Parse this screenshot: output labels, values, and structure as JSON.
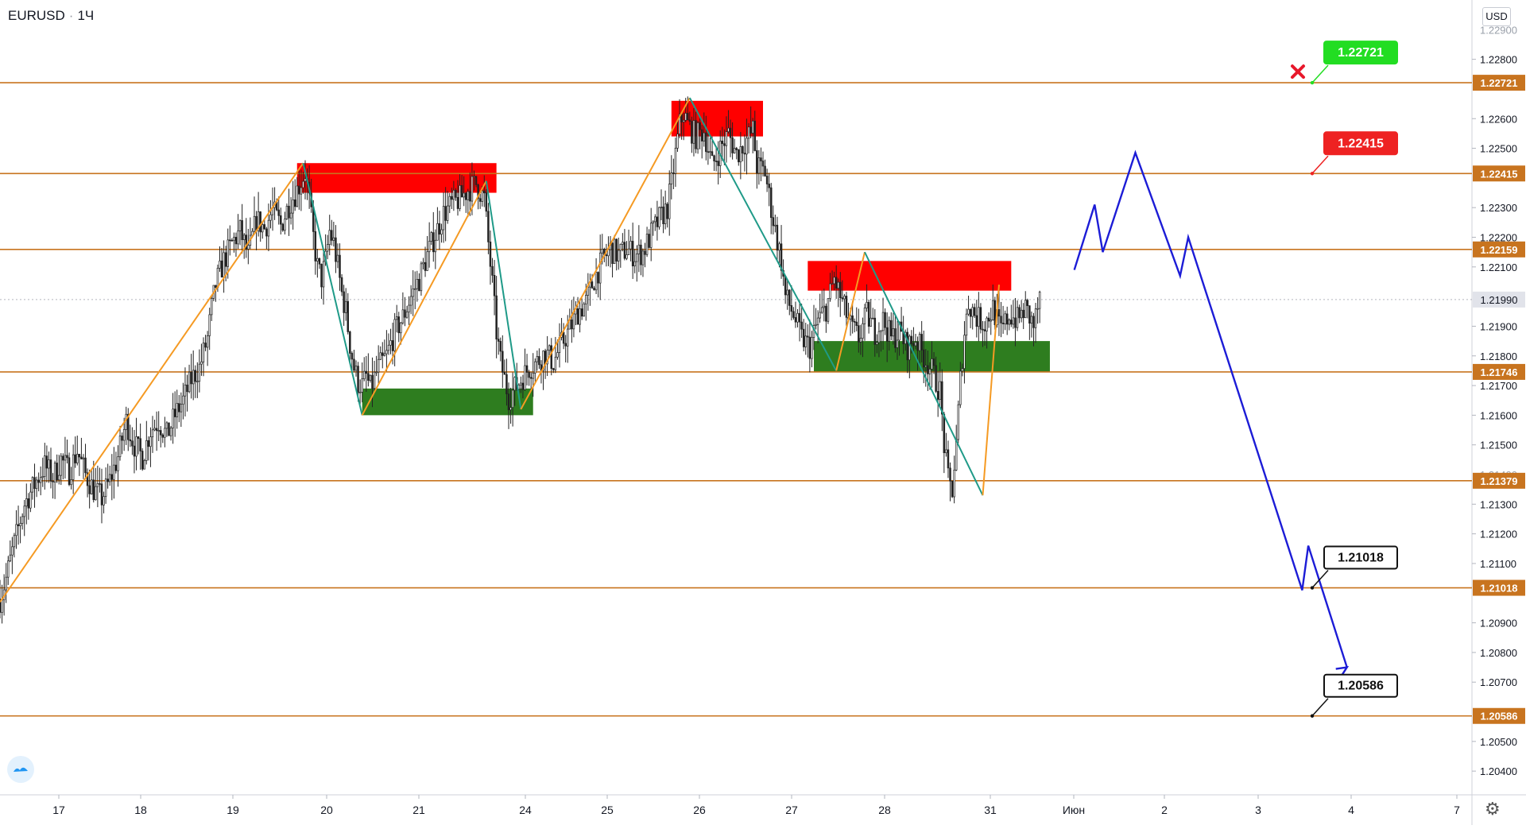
{
  "header": {
    "symbol": "EURUSD",
    "interval": "1Ч",
    "separator": "·",
    "currency": "USD"
  },
  "icons": {
    "logo": "tradingview-logo-icon",
    "settings": "gear-icon",
    "invalidated": "x-mark-icon"
  },
  "colors": {
    "level_line": "#c8741f",
    "up_wave": "#f59a23",
    "down_wave": "#1f9a88",
    "forecast": "#1c1cd6",
    "resistance_zone": "#ff0000",
    "support_zone": "#2e7d1f",
    "candle": "#222222",
    "target_green": "#22dd22",
    "target_red": "#ee2222",
    "target_black": "#111111"
  },
  "chart_data": {
    "type": "candlestick",
    "symbol": "EURUSD",
    "timeframe": "1Ч",
    "y_unit": "USD",
    "ylim": [
      1.2032,
      1.23
    ],
    "x_ticks": [
      "17",
      "18",
      "19",
      "20",
      "21",
      "24",
      "25",
      "26",
      "27",
      "28",
      "31",
      "Июн",
      "2",
      "3",
      "4",
      "7"
    ],
    "y_ticks": [
      "1.22800",
      "1.22600",
      "1.22500",
      "1.22300",
      "1.22200",
      "1.22100",
      "1.21900",
      "1.21800",
      "1.21700",
      "1.21600",
      "1.21500",
      "1.21300",
      "1.21200",
      "1.21100",
      "1.20900",
      "1.20800",
      "1.20700",
      "1.20500",
      "1.20400"
    ],
    "y_ticks_partial": [
      "1.22900",
      "1.21400"
    ],
    "current_price": "1.21990",
    "levels": [
      {
        "label": "1.22721",
        "price": 1.22721
      },
      {
        "label": "1.22415",
        "price": 1.22415
      },
      {
        "label": "1.22159",
        "price": 1.22159
      },
      {
        "label": "1.21746",
        "price": 1.21746
      },
      {
        "label": "1.21379",
        "price": 1.21379
      },
      {
        "label": "1.21018",
        "price": 1.21018
      },
      {
        "label": "1.20586",
        "price": 1.20586
      }
    ],
    "targets": [
      {
        "label": "1.22721",
        "price": 1.22721,
        "style": "green",
        "crossed": true
      },
      {
        "label": "1.22415",
        "price": 1.22415,
        "style": "red",
        "crossed": false
      },
      {
        "label": "1.21018",
        "price": 1.21018,
        "style": "black",
        "crossed": false
      },
      {
        "label": "1.20586",
        "price": 1.20586,
        "style": "black",
        "crossed": false
      }
    ],
    "close_path": [
      [
        0,
        1.2098
      ],
      [
        3,
        1.2105
      ],
      [
        6,
        1.2114
      ],
      [
        9,
        1.2122
      ],
      [
        12,
        1.213
      ],
      [
        15,
        1.2134
      ],
      [
        18,
        1.2138
      ],
      [
        22,
        1.2143
      ],
      [
        26,
        1.2139
      ],
      [
        30,
        1.2145
      ],
      [
        34,
        1.2141
      ],
      [
        38,
        1.2148
      ],
      [
        42,
        1.214
      ],
      [
        46,
        1.2135
      ],
      [
        50,
        1.2132
      ],
      [
        54,
        1.2138
      ],
      [
        58,
        1.2146
      ],
      [
        62,
        1.2158
      ],
      [
        66,
        1.215
      ],
      [
        70,
        1.2146
      ],
      [
        74,
        1.2155
      ],
      [
        78,
        1.2158
      ],
      [
        82,
        1.2153
      ],
      [
        86,
        1.216
      ],
      [
        90,
        1.2165
      ],
      [
        94,
        1.2172
      ],
      [
        98,
        1.2176
      ],
      [
        102,
        1.2186
      ],
      [
        104,
        1.2196
      ],
      [
        106,
        1.2204
      ],
      [
        110,
        1.2212
      ],
      [
        114,
        1.2218
      ],
      [
        118,
        1.2222
      ],
      [
        122,
        1.2214
      ],
      [
        126,
        1.2226
      ],
      [
        130,
        1.2223
      ],
      [
        134,
        1.2229
      ],
      [
        138,
        1.2224
      ],
      [
        142,
        1.2231
      ],
      [
        146,
        1.2236
      ],
      [
        150,
        1.2242
      ],
      [
        152,
        1.2232
      ],
      [
        154,
        1.222
      ],
      [
        156,
        1.221
      ],
      [
        158,
        1.2206
      ],
      [
        160,
        1.2212
      ],
      [
        162,
        1.2222
      ],
      [
        164,
        1.2218
      ],
      [
        166,
        1.221
      ],
      [
        168,
        1.2201
      ],
      [
        170,
        1.2195
      ],
      [
        172,
        1.2184
      ],
      [
        174,
        1.2176
      ],
      [
        176,
        1.2171
      ],
      [
        178,
        1.217
      ],
      [
        180,
        1.2173
      ],
      [
        182,
        1.2169
      ],
      [
        186,
        1.2176
      ],
      [
        190,
        1.218
      ],
      [
        194,
        1.2188
      ],
      [
        198,
        1.2193
      ],
      [
        202,
        1.22
      ],
      [
        206,
        1.2206
      ],
      [
        210,
        1.2214
      ],
      [
        214,
        1.2221
      ],
      [
        218,
        1.2228
      ],
      [
        222,
        1.2231
      ],
      [
        226,
        1.2233
      ],
      [
        230,
        1.2236
      ],
      [
        234,
        1.2238
      ],
      [
        238,
        1.2233
      ],
      [
        240,
        1.2218
      ],
      [
        242,
        1.2204
      ],
      [
        244,
        1.2188
      ],
      [
        246,
        1.2178
      ],
      [
        248,
        1.2172
      ],
      [
        250,
        1.2166
      ],
      [
        252,
        1.2168
      ],
      [
        256,
        1.2172
      ],
      [
        260,
        1.2176
      ],
      [
        264,
        1.2178
      ],
      [
        268,
        1.2181
      ],
      [
        272,
        1.2178
      ],
      [
        276,
        1.2184
      ],
      [
        280,
        1.2189
      ],
      [
        284,
        1.2195
      ],
      [
        288,
        1.2198
      ],
      [
        292,
        1.2206
      ],
      [
        296,
        1.2212
      ],
      [
        300,
        1.2216
      ],
      [
        304,
        1.2214
      ],
      [
        308,
        1.2216
      ],
      [
        312,
        1.2214
      ],
      [
        316,
        1.2215
      ],
      [
        320,
        1.2221
      ],
      [
        324,
        1.2226
      ],
      [
        328,
        1.223
      ],
      [
        330,
        1.2238
      ],
      [
        332,
        1.2248
      ],
      [
        334,
        1.2258
      ],
      [
        336,
        1.2262
      ],
      [
        338,
        1.2258
      ],
      [
        342,
        1.2254
      ],
      [
        346,
        1.2256
      ],
      [
        350,
        1.2244
      ],
      [
        354,
        1.225
      ],
      [
        358,
        1.2255
      ],
      [
        362,
        1.2248
      ],
      [
        366,
        1.2252
      ],
      [
        370,
        1.2256
      ],
      [
        372,
        1.2244
      ],
      [
        376,
        1.2242
      ],
      [
        380,
        1.2226
      ],
      [
        384,
        1.2212
      ],
      [
        386,
        1.22
      ],
      [
        390,
        1.2194
      ],
      [
        394,
        1.2186
      ],
      [
        398,
        1.2183
      ],
      [
        402,
        1.2192
      ],
      [
        406,
        1.2196
      ],
      [
        410,
        1.2206
      ],
      [
        414,
        1.2198
      ],
      [
        418,
        1.219
      ],
      [
        422,
        1.2186
      ],
      [
        426,
        1.2194
      ],
      [
        430,
        1.2188
      ],
      [
        434,
        1.2192
      ],
      [
        438,
        1.2186
      ],
      [
        442,
        1.2188
      ],
      [
        446,
        1.2183
      ],
      [
        450,
        1.2186
      ],
      [
        454,
        1.218
      ],
      [
        458,
        1.2175
      ],
      [
        462,
        1.2168
      ],
      [
        464,
        1.215
      ],
      [
        466,
        1.2138
      ],
      [
        468,
        1.2135
      ],
      [
        470,
        1.215
      ],
      [
        472,
        1.2172
      ],
      [
        474,
        1.2188
      ],
      [
        476,
        1.2198
      ],
      [
        480,
        1.2193
      ],
      [
        484,
        1.2191
      ],
      [
        488,
        1.2196
      ],
      [
        492,
        1.2188
      ],
      [
        496,
        1.2194
      ],
      [
        500,
        1.2192
      ],
      [
        504,
        1.2196
      ],
      [
        508,
        1.219
      ],
      [
        511,
        1.2199
      ]
    ],
    "total_bars": 512,
    "zones": [
      {
        "kind": "resistance",
        "x0": 146,
        "x1": 244,
        "y0": 1.2235,
        "y1": 1.2245
      },
      {
        "kind": "support",
        "x0": 178,
        "x1": 262,
        "y0": 1.216,
        "y1": 1.2169
      },
      {
        "kind": "resistance",
        "x0": 330,
        "x1": 375,
        "y0": 1.2254,
        "y1": 1.2266
      },
      {
        "kind": "resistance",
        "x0": 397,
        "x1": 497,
        "y0": 1.2202,
        "y1": 1.2212
      },
      {
        "kind": "support",
        "x0": 400,
        "x1": 516,
        "y0": 1.21746,
        "y1": 1.2185
      }
    ],
    "waves": [
      {
        "direction": "up",
        "x0": 0,
        "y0": 1.2097,
        "x1": 149,
        "y1": 1.2245
      },
      {
        "direction": "down",
        "x0": 149,
        "y0": 1.2245,
        "x1": 178,
        "y1": 1.216
      },
      {
        "direction": "up",
        "x0": 178,
        "y0": 1.216,
        "x1": 239,
        "y1": 1.2239
      },
      {
        "direction": "down",
        "x0": 239,
        "y0": 1.2239,
        "x1": 256,
        "y1": 1.2162
      },
      {
        "direction": "up",
        "x0": 256,
        "y0": 1.2162,
        "x1": 339,
        "y1": 1.2267
      },
      {
        "direction": "down",
        "x0": 339,
        "y0": 1.2267,
        "x1": 411,
        "y1": 1.2175
      },
      {
        "direction": "up",
        "x0": 411,
        "y0": 1.2175,
        "x1": 425,
        "y1": 1.2215
      },
      {
        "direction": "down",
        "x0": 425,
        "y0": 1.2215,
        "x1": 483,
        "y1": 1.2133
      },
      {
        "direction": "up",
        "x0": 483,
        "y0": 1.2133,
        "x1": 491,
        "y1": 1.2204
      }
    ],
    "forecast_path": [
      [
        528,
        1.2209
      ],
      [
        538,
        1.2231
      ],
      [
        542,
        1.2215
      ],
      [
        558,
        1.22485
      ],
      [
        580,
        1.2207
      ],
      [
        584,
        1.222
      ],
      [
        640,
        1.2101
      ],
      [
        643,
        1.2116
      ],
      [
        662,
        1.2075
      ]
    ]
  }
}
